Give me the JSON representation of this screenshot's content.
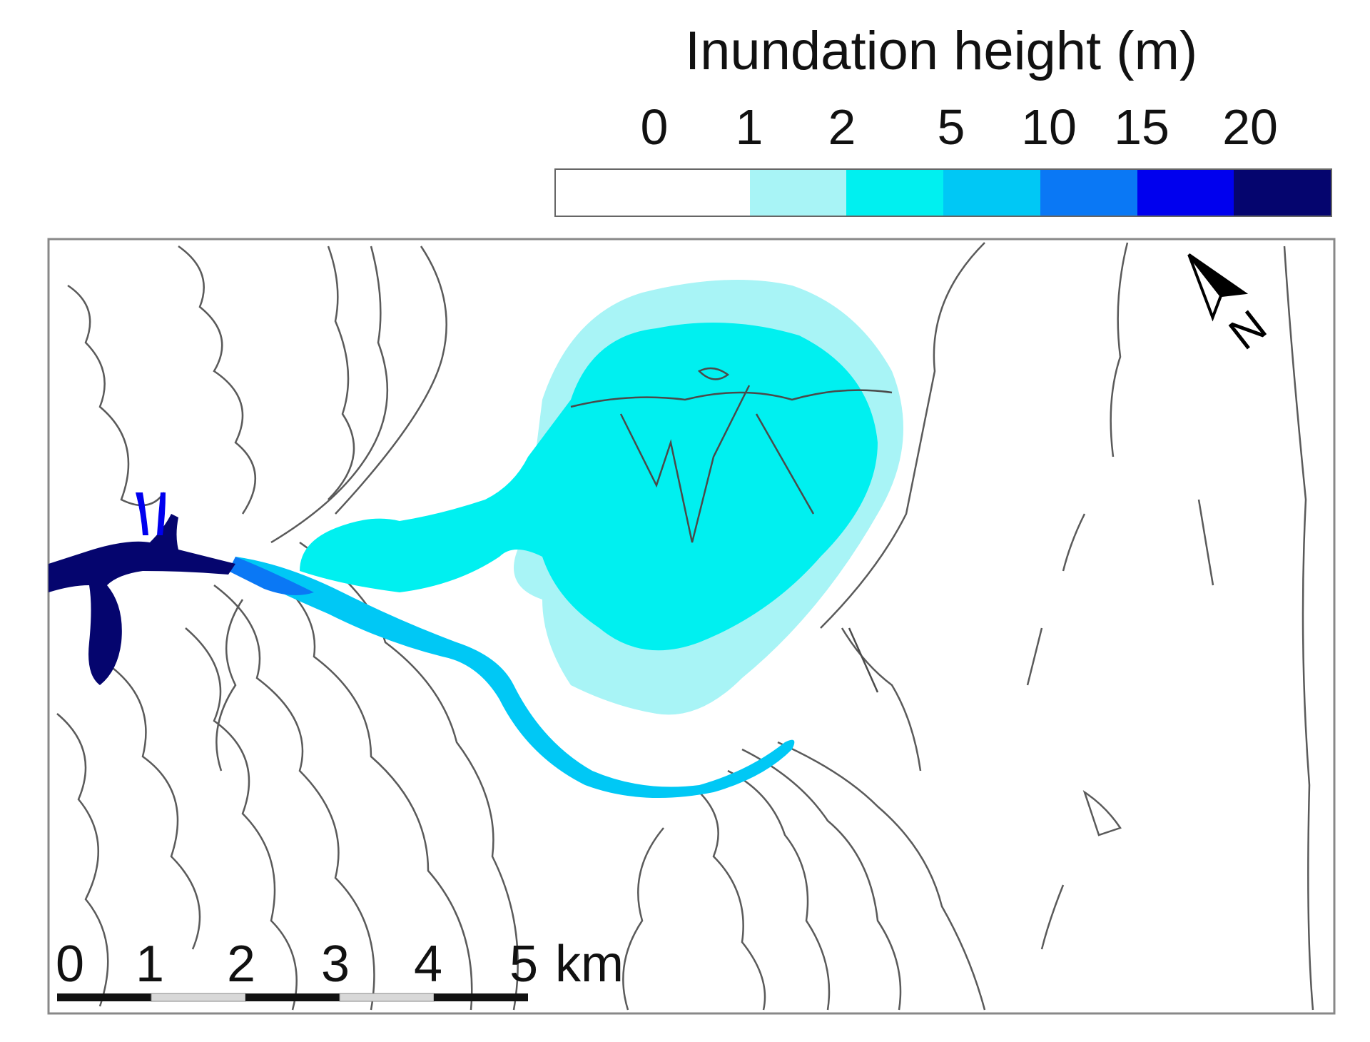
{
  "legend": {
    "title": "Inundation height (m)",
    "ticks": [
      "0",
      "1",
      "2",
      "5",
      "10",
      "15",
      "20"
    ],
    "classes": [
      {
        "range": "0-1",
        "color": "#ffffff"
      },
      {
        "range": "1-2",
        "color": "#a8f4f6"
      },
      {
        "range": "2-5",
        "color": "#00f0f0"
      },
      {
        "range": "5-10",
        "color": "#00c8f5"
      },
      {
        "range": "10-15",
        "color": "#0a78f5"
      },
      {
        "range": "15-20",
        "color": "#0000ee"
      },
      {
        "range": ">20",
        "color": "#05056e"
      }
    ]
  },
  "north_arrow": {
    "label": "N"
  },
  "scale_bar": {
    "labels": [
      "0",
      "1",
      "2",
      "3",
      "4",
      "5"
    ],
    "unit": "km"
  },
  "colors": {
    "contour": "#5a5a5a",
    "frame": "#888888",
    "scale_dark": "#111111",
    "scale_light": "#d8d8d8"
  }
}
